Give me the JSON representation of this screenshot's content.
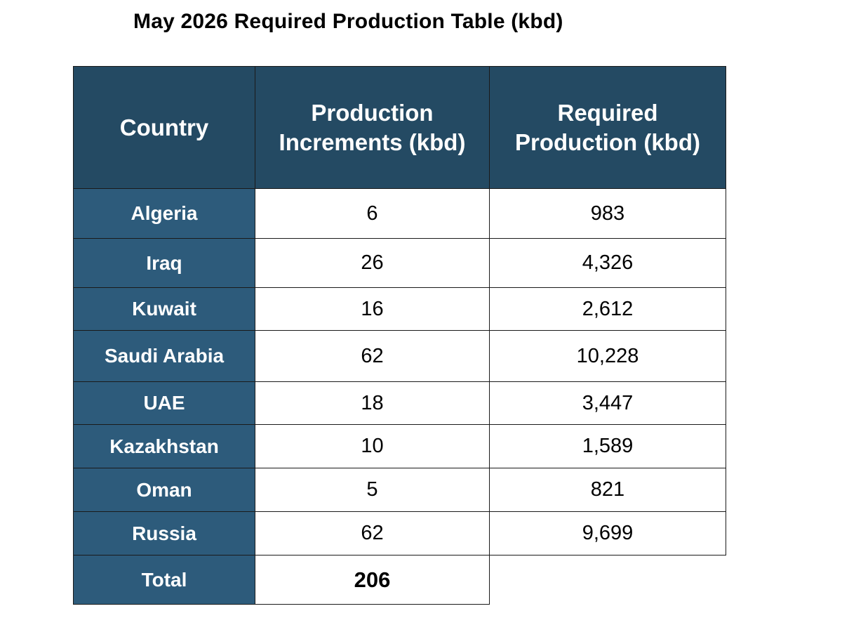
{
  "title": "May 2026 Required Production Table (kbd)",
  "table": {
    "headers": {
      "country": "Country",
      "increments_line1": "Production",
      "increments_line2": "Increments (kbd)",
      "required_line1": "Required",
      "required_line2": "Production (kbd)"
    },
    "rows": [
      {
        "country": "Algeria",
        "increment": "6",
        "required": "983"
      },
      {
        "country": "Iraq",
        "increment": "26",
        "required": "4,326"
      },
      {
        "country": "Kuwait",
        "increment": "16",
        "required": "2,612"
      },
      {
        "country": "Saudi Arabia",
        "increment": "62",
        "required": "10,228"
      },
      {
        "country": "UAE",
        "increment": "18",
        "required": "3,447"
      },
      {
        "country": "Kazakhstan",
        "increment": "10",
        "required": "1,589"
      },
      {
        "country": "Oman",
        "increment": "5",
        "required": "821"
      },
      {
        "country": "Russia",
        "increment": "62",
        "required": "9,699"
      }
    ],
    "total": {
      "label": "Total",
      "increment": "206"
    }
  },
  "colors": {
    "header_background": "#244a63",
    "country_cell_background": "#2d5b7b",
    "header_text": "#ffffff",
    "body_text": "#000000"
  }
}
